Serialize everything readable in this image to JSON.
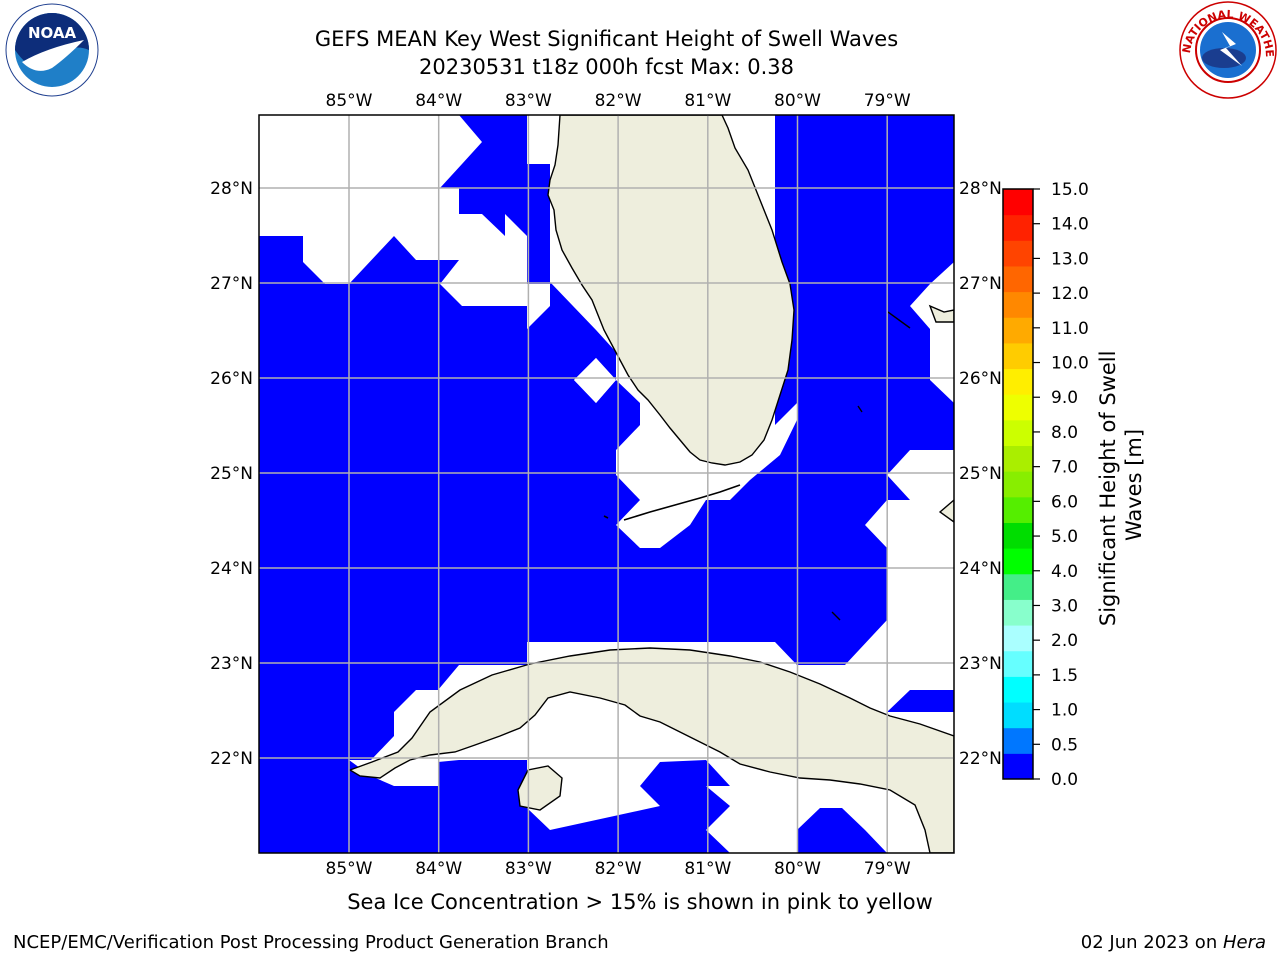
{
  "header": {
    "title_line1": "GEFS MEAN Key West Significant Height of Swell Waves",
    "title_line2": "20230531 t18z 000h fcst   Max: 0.38"
  },
  "logos": {
    "left": {
      "icon": "noaa-logo",
      "text": "NOAA"
    },
    "right": {
      "icon": "national-weather-service-logo",
      "text": "NATIONAL WEATHER SERVICE"
    }
  },
  "map": {
    "lon_labels": [
      "85°W",
      "84°W",
      "83°W",
      "82°W",
      "81°W",
      "80°W",
      "79°W"
    ],
    "lat_labels": [
      "28°N",
      "27°N",
      "26°N",
      "25°N",
      "24°N",
      "23°N",
      "22°N"
    ],
    "lon_values": [
      -85,
      -84,
      -83,
      -82,
      -81,
      -80,
      -79
    ],
    "lat_values": [
      28,
      27,
      26,
      25,
      24,
      23,
      22
    ],
    "ocean_color": "#0000ff",
    "land_color": "#eeeedd",
    "grid_color": "#b0b0b0"
  },
  "colorbar": {
    "label": "Significant Height of Swell Waves [m]",
    "ticks": [
      "15.0",
      "14.0",
      "13.0",
      "12.0",
      "11.0",
      "10.0",
      "9.0",
      "8.0",
      "7.0",
      "6.0",
      "5.0",
      "4.0",
      "3.0",
      "2.0",
      "1.5",
      "1.0",
      "0.5",
      "0.0"
    ],
    "colors": [
      "#ff0000",
      "#ff2200",
      "#ff4400",
      "#ff6600",
      "#ff8800",
      "#ffaa00",
      "#ffcc00",
      "#ffee00",
      "#eeff00",
      "#ccff00",
      "#aaee00",
      "#88ee00",
      "#55ee00",
      "#00dd00",
      "#00ff00",
      "#44ee88",
      "#88ffcc",
      "#aaffff",
      "#66ffff",
      "#00ffff",
      "#00ddff",
      "#0077ff",
      "#0000ff"
    ]
  },
  "note": "Sea Ice Concentration > 15% is shown in pink to yellow",
  "footer": {
    "left": "NCEP/EMC/Verification Post Processing Product Generation Branch",
    "right_prefix": "02 Jun 2023 on ",
    "right_italic": "Hera"
  }
}
